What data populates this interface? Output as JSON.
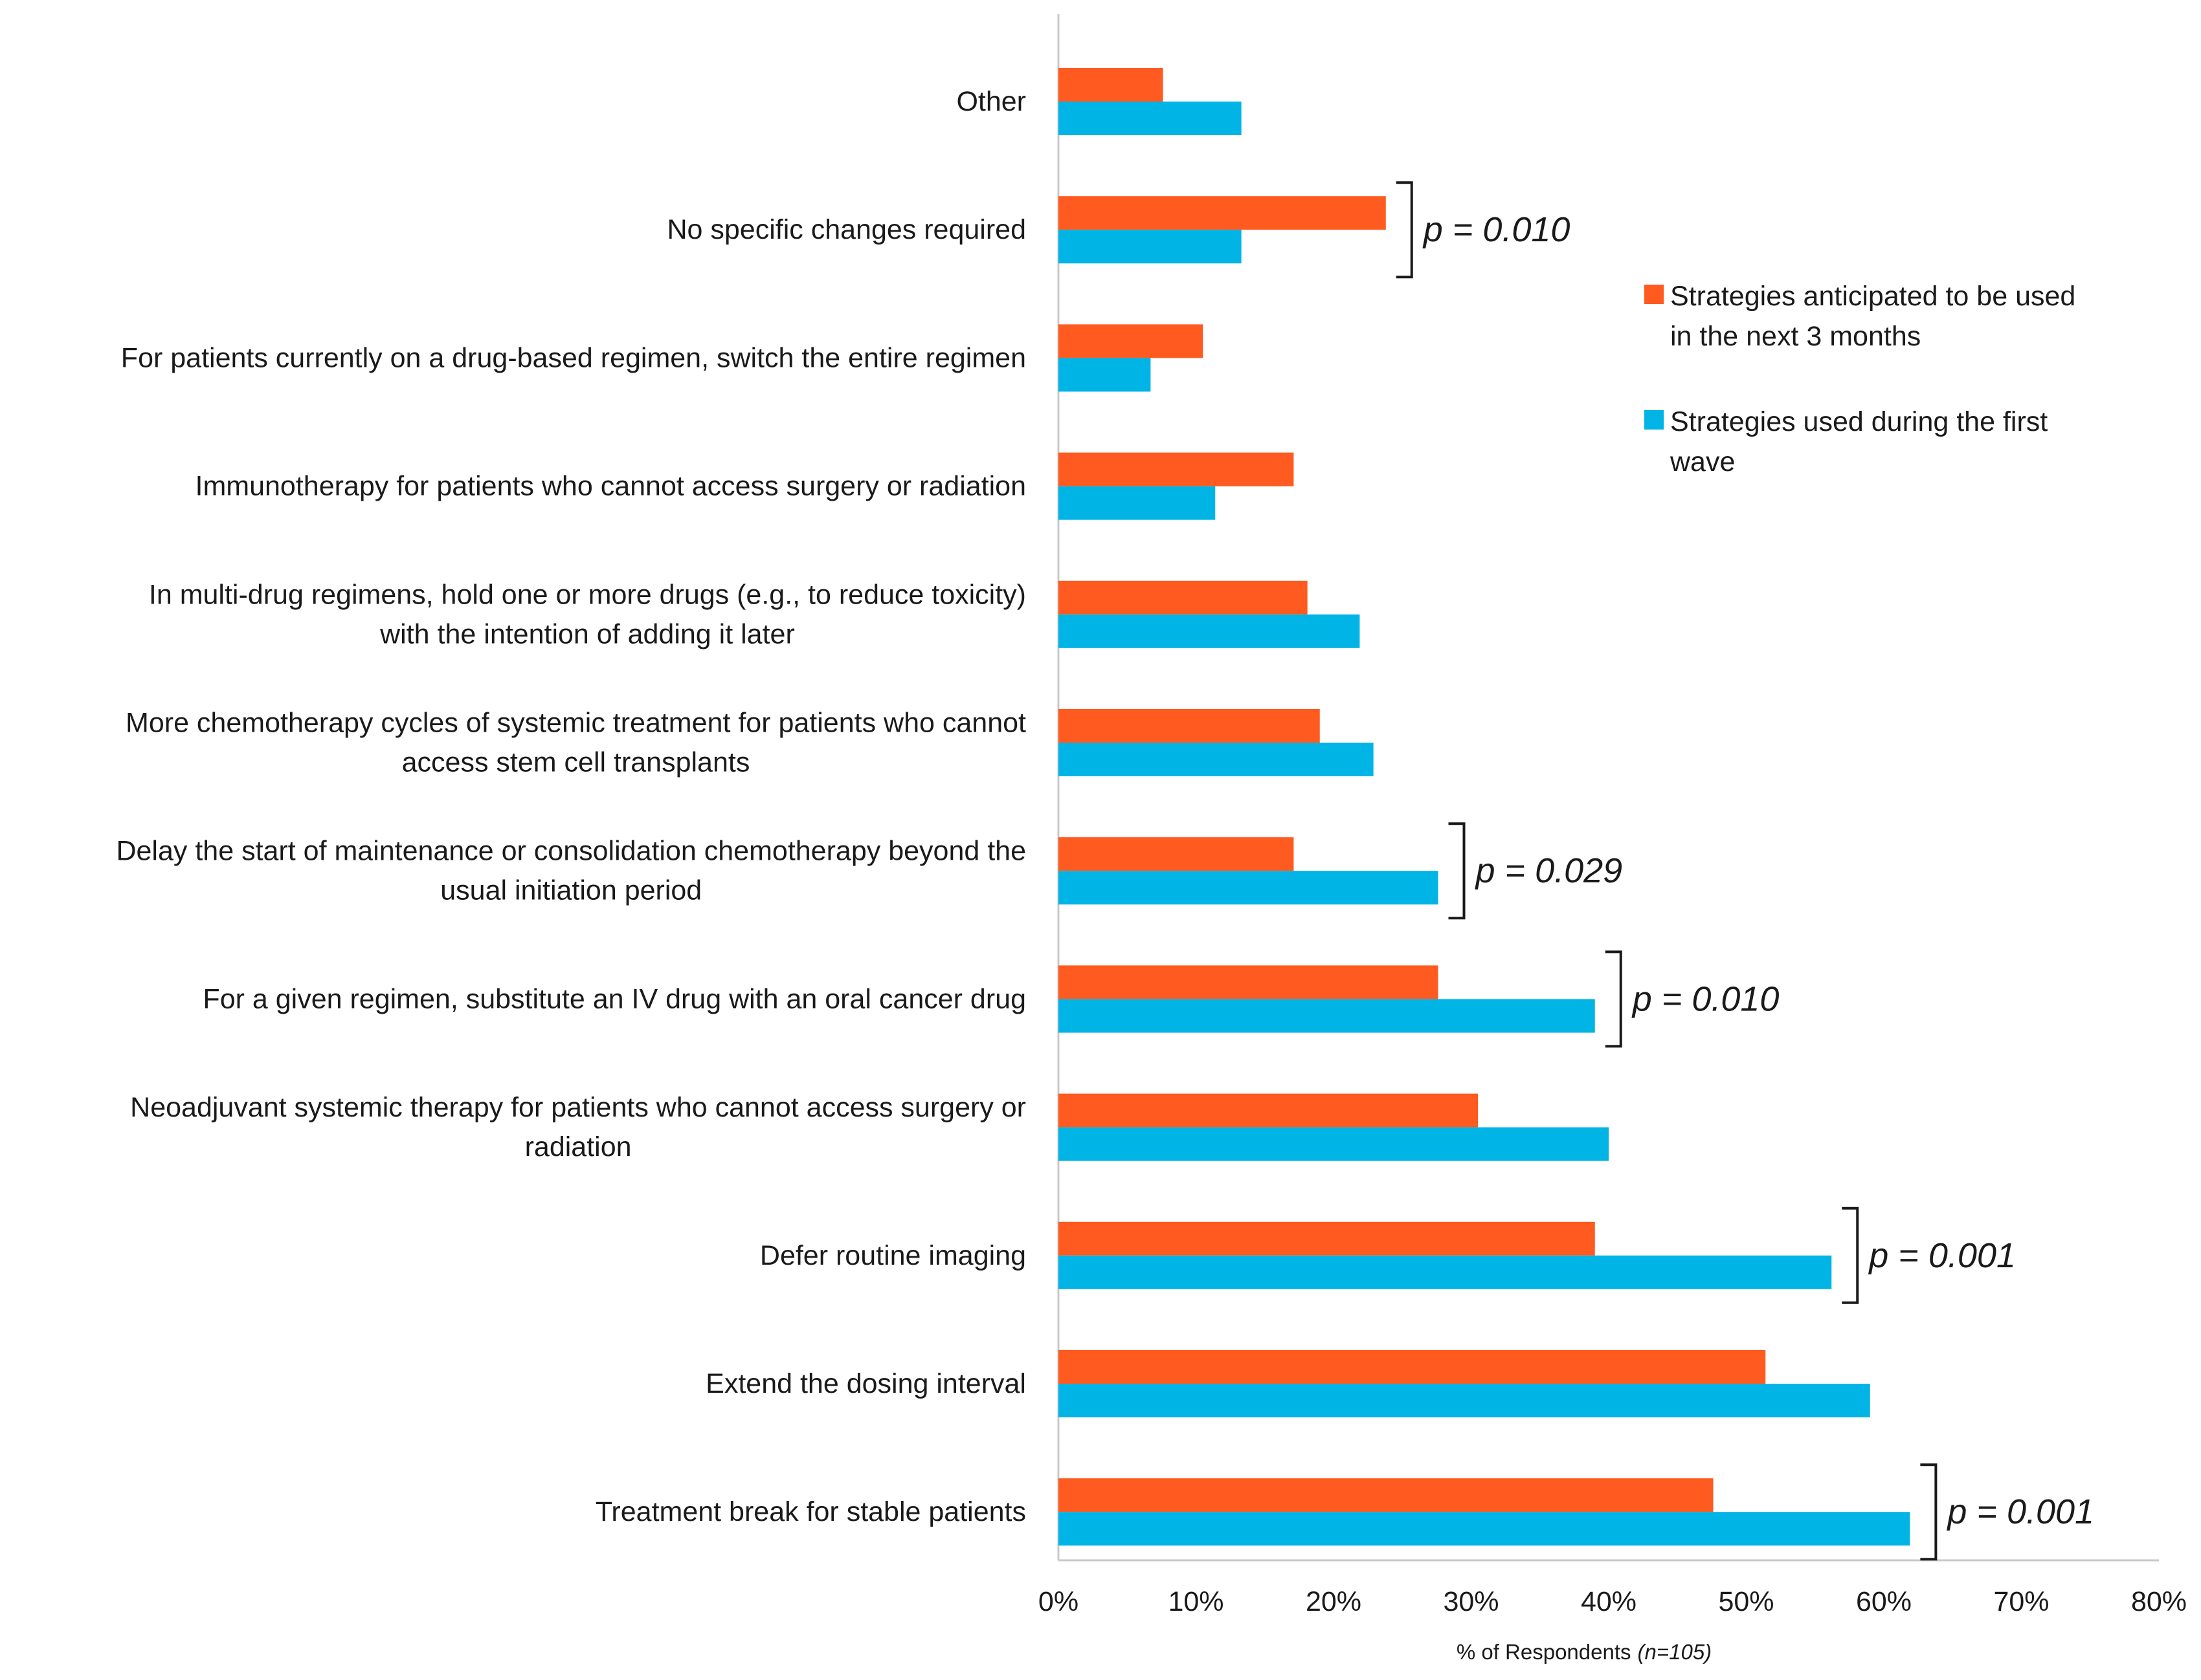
{
  "chart_data": {
    "type": "bar",
    "orientation": "horizontal",
    "categories": [
      [
        "Other"
      ],
      [
        "No specific changes required"
      ],
      [
        "For patients currently on a drug-based regimen, switch the entire regimen"
      ],
      [
        "Immunotherapy for patients who cannot access surgery or radiation"
      ],
      [
        "In multi-drug regimens, hold one or more drugs (e.g., to reduce toxicity)",
        "with the intention of adding it later"
      ],
      [
        "More chemotherapy cycles of systemic treatment  for patients who cannot",
        "access stem cell transplants"
      ],
      [
        "Delay the start of maintenance or consolidation chemotherapy beyond the",
        "usual initiation period"
      ],
      [
        "For a given regimen, substitute an IV drug with an oral cancer drug"
      ],
      [
        "Neoadjuvant systemic therapy for patients who cannot access surgery or",
        "radiation"
      ],
      [
        "Defer routine imaging"
      ],
      [
        "Extend the dosing interval"
      ],
      [
        "Treatment break for stable patients"
      ]
    ],
    "series": [
      {
        "name": "Strategies anticipated to be used in the next 3 months",
        "legend_lines": [
          "Strategies anticipated to be used",
          "in the next 3 months"
        ],
        "color": "#FF5A1F",
        "values": [
          7.6,
          23.8,
          10.5,
          17.1,
          18.1,
          19.0,
          17.1,
          27.6,
          30.5,
          39.0,
          51.4,
          47.6
        ]
      },
      {
        "name": "Strategies used during the first wave",
        "legend_lines": [
          "Strategies used during the first",
          "wave"
        ],
        "color": "#00B4E6",
        "values": [
          13.3,
          13.3,
          6.7,
          11.4,
          21.9,
          22.9,
          27.6,
          39.0,
          40.0,
          56.2,
          59.0,
          61.9
        ]
      }
    ],
    "xlim": [
      0,
      80
    ],
    "xticks": [
      "0%",
      "10%",
      "20%",
      "30%",
      "40%",
      "50%",
      "60%",
      "70%",
      "80%"
    ],
    "xlabel": "% of Respondents",
    "xlabel_note": "(n=105)",
    "ylabel": "",
    "legend_position": "right",
    "annotations": [
      {
        "category_index": 1,
        "text": "p = 0.010"
      },
      {
        "category_index": 6,
        "text": "p = 0.029"
      },
      {
        "category_index": 7,
        "text": "p = 0.010"
      },
      {
        "category_index": 9,
        "text": "p = 0.001"
      },
      {
        "category_index": 11,
        "text": "p = 0.001"
      }
    ]
  }
}
